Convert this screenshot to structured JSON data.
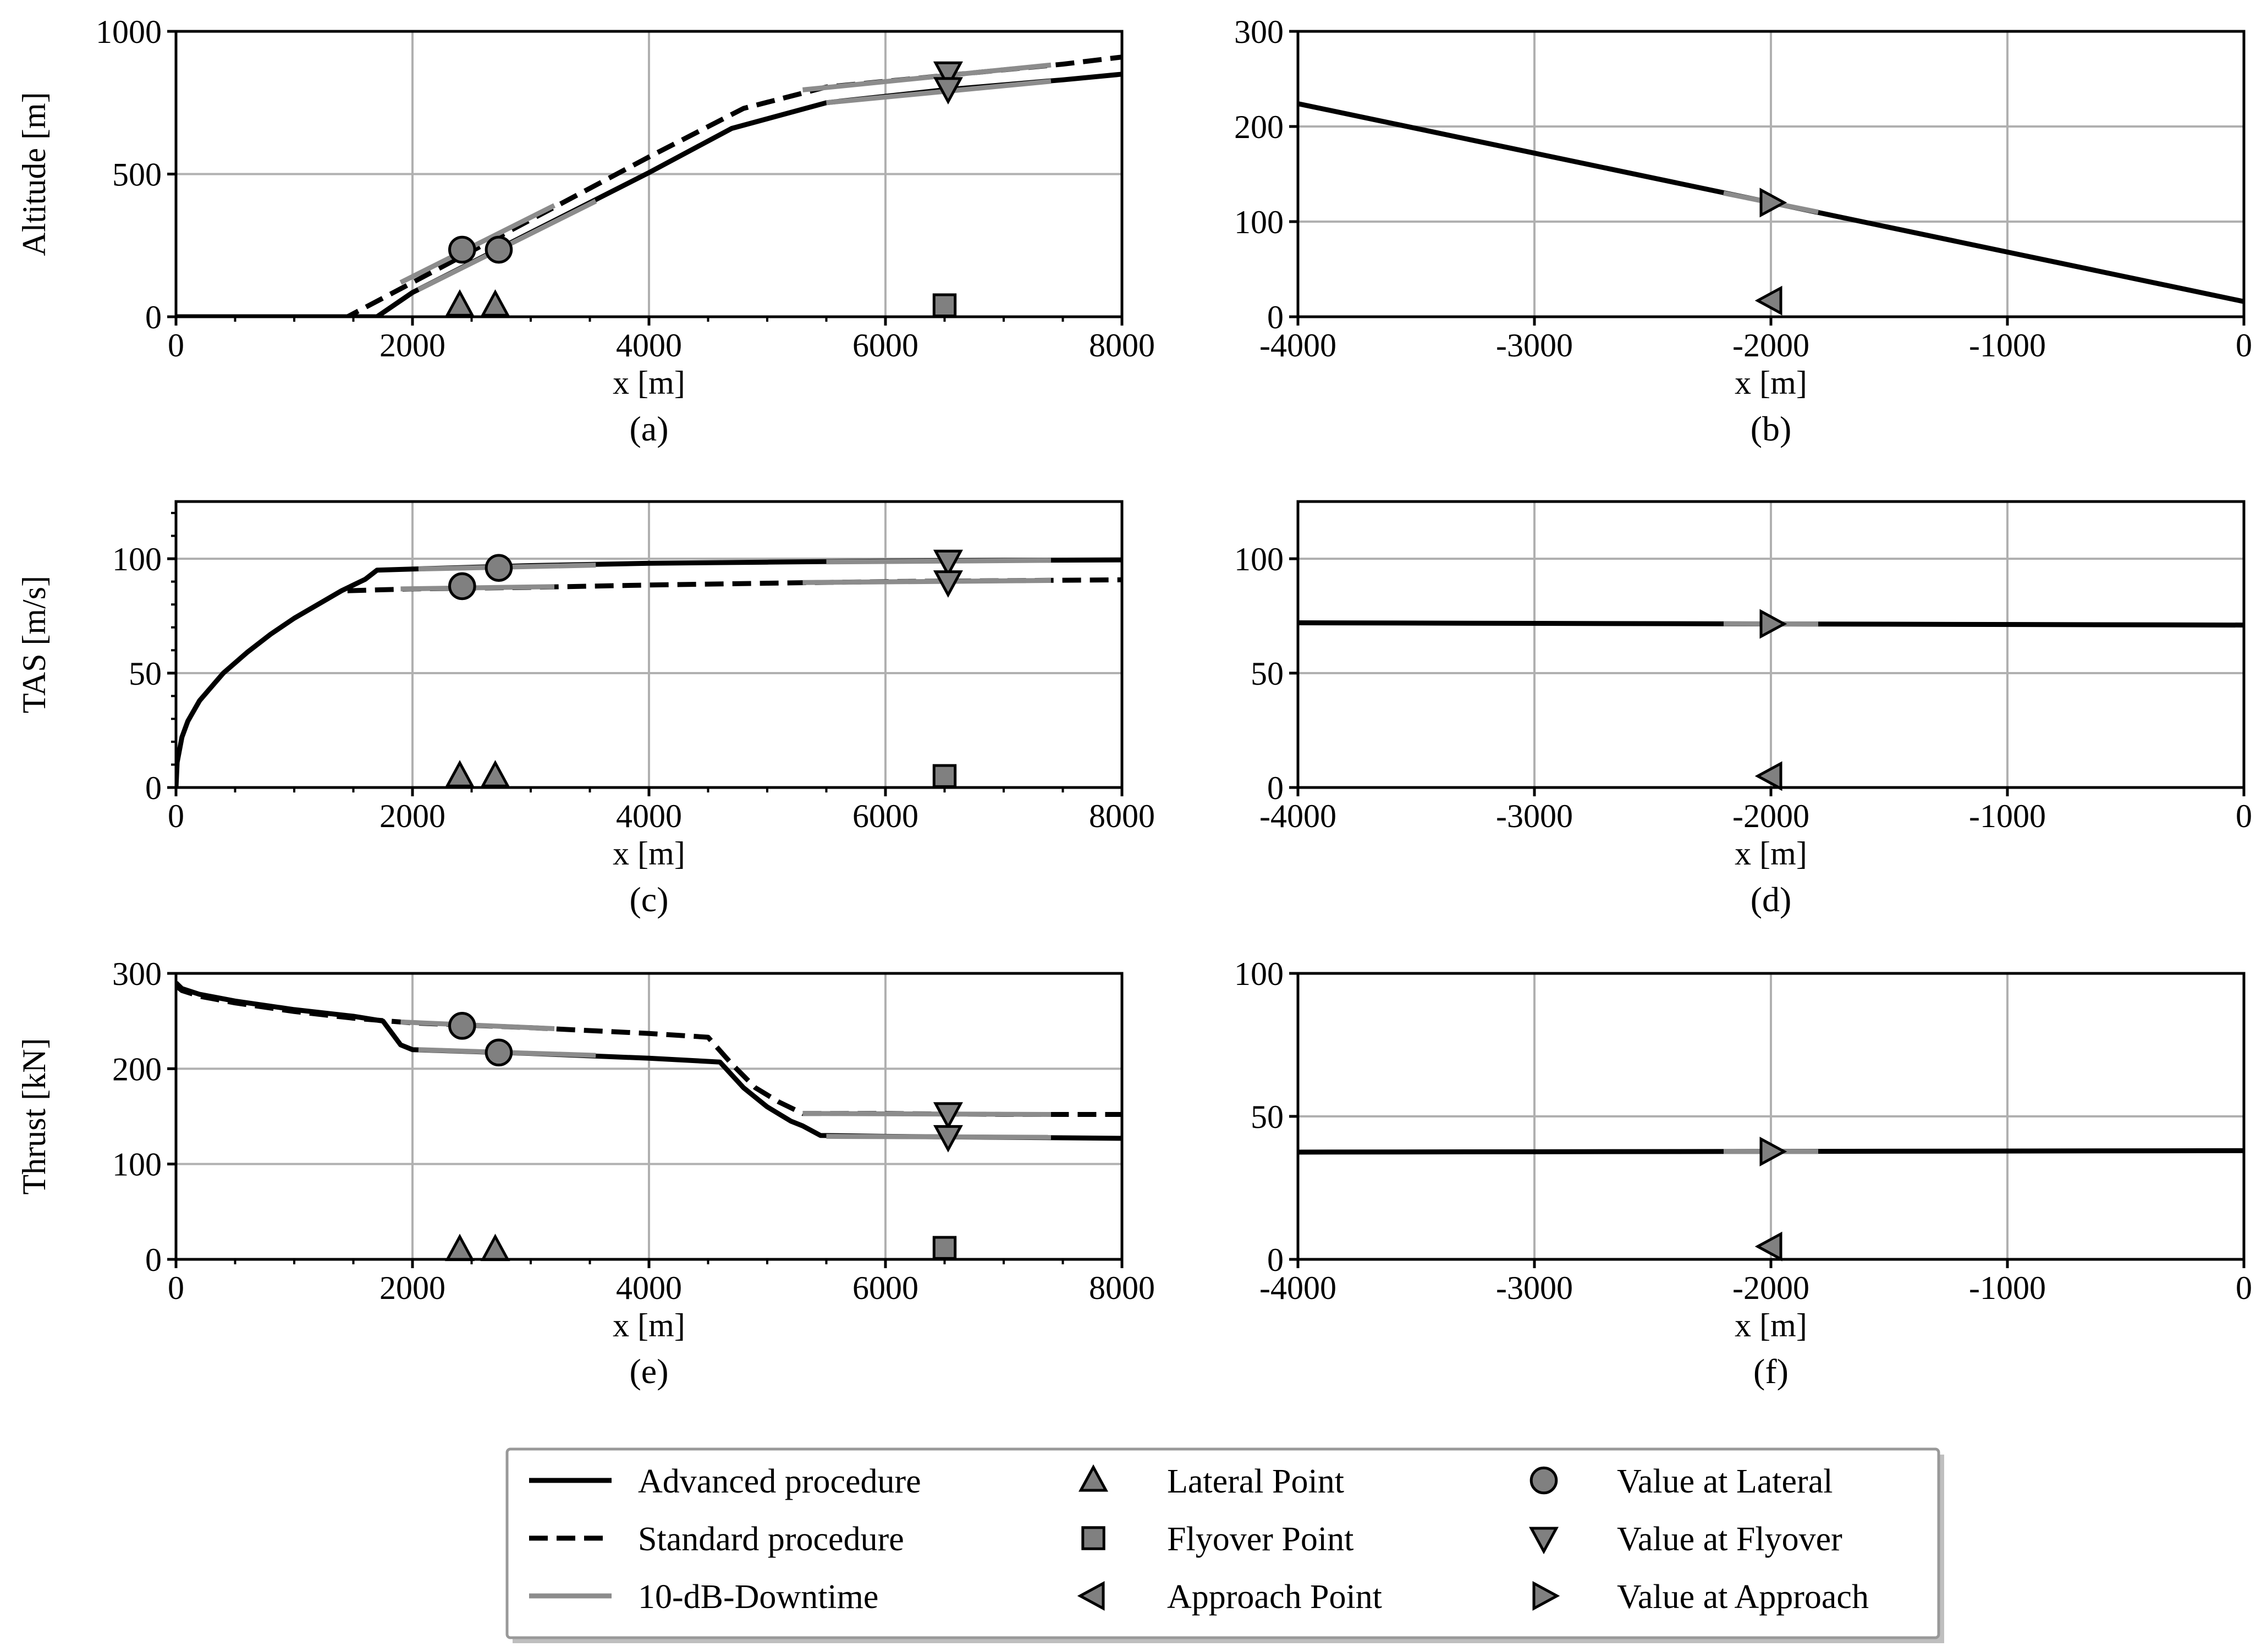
{
  "chart_data": [
    {
      "panel": "a",
      "type": "line",
      "caption": "(a)",
      "xlabel": "x [m]",
      "ylabel": "Altitude [m]",
      "xlim": [
        0,
        8000
      ],
      "ylim": [
        0,
        1000
      ],
      "xticks": [
        0,
        2000,
        4000,
        6000,
        8000
      ],
      "yticks": [
        0,
        500,
        1000
      ],
      "xtick_labels": [
        "0",
        "2000",
        "4000",
        "6000",
        "8000"
      ],
      "ytick_labels": [
        "0",
        "500",
        "1000"
      ],
      "minor_xticks": [
        500,
        1000,
        1500,
        2500,
        3000,
        3500,
        4500,
        5000,
        5500,
        6500,
        7000,
        7500
      ],
      "minor_yticks": [],
      "grid": true,
      "series": [
        {
          "name": "Advanced procedure",
          "style": "advanced",
          "x": [
            0,
            1700,
            2000,
            3000,
            4000,
            4700,
            5500,
            6500,
            7500,
            8000
          ],
          "y": [
            0,
            0,
            85,
            295,
            505,
            660,
            750,
            795,
            830,
            850
          ]
        },
        {
          "name": "Standard procedure",
          "style": "standard",
          "x": [
            0,
            1450,
            2000,
            3000,
            4000,
            4800,
            5500,
            6500,
            7500,
            8000
          ],
          "y": [
            0,
            0,
            120,
            340,
            560,
            730,
            805,
            845,
            885,
            910
          ]
        },
        {
          "name": "10-dB-Downtime",
          "style": "downtime",
          "x": [
            2050,
            3550
          ],
          "y": [
            95,
            405
          ]
        },
        {
          "name": "10-dB-Downtime",
          "style": "downtime",
          "x": [
            1900,
            3200
          ],
          "y": [
            120,
            390
          ]
        },
        {
          "name": "10-dB-Downtime",
          "style": "downtime",
          "x": [
            5500,
            7400
          ],
          "y": [
            750,
            825
          ]
        },
        {
          "name": "10-dB-Downtime",
          "style": "downtime",
          "x": [
            5300,
            7400
          ],
          "y": [
            795,
            882
          ]
        }
      ],
      "markers": [
        {
          "name": "Lateral Point",
          "shape": "tri-up",
          "x": [
            2400,
            2700
          ],
          "y": [
            40,
            40
          ]
        },
        {
          "name": "Flyover Point",
          "shape": "square",
          "x": [
            6500
          ],
          "y": [
            40
          ]
        },
        {
          "name": "Value at Lateral",
          "shape": "circle",
          "x": [
            2420,
            2730
          ],
          "y": [
            235,
            235
          ]
        },
        {
          "name": "Value at Flyover",
          "shape": "tri-down",
          "x": [
            6530,
            6530
          ],
          "y": [
            855,
            800
          ]
        }
      ]
    },
    {
      "panel": "b",
      "type": "line",
      "caption": "(b)",
      "xlabel": "x [m]",
      "ylabel": "",
      "xlim": [
        -4000,
        0
      ],
      "ylim": [
        0,
        300
      ],
      "xticks": [
        -4000,
        -3000,
        -2000,
        -1000,
        0
      ],
      "yticks": [
        0,
        100,
        200,
        300
      ],
      "xtick_labels": [
        "-4000",
        "-3000",
        "-2000",
        "-1000",
        "0"
      ],
      "ytick_labels": [
        "0",
        "100",
        "200",
        "300"
      ],
      "minor_xticks": [],
      "minor_yticks": [],
      "grid": true,
      "series": [
        {
          "name": "Advanced procedure",
          "style": "advanced",
          "x": [
            -4000,
            0
          ],
          "y": [
            224,
            16
          ]
        },
        {
          "name": "10-dB-Downtime",
          "style": "downtime",
          "x": [
            -2200,
            -1800
          ],
          "y": [
            130,
            110
          ]
        }
      ],
      "markers": [
        {
          "name": "Approach Point",
          "shape": "tri-left",
          "x": [
            -2000
          ],
          "y": [
            17
          ]
        },
        {
          "name": "Value at Approach",
          "shape": "tri-right",
          "x": [
            -2000
          ],
          "y": [
            120
          ]
        }
      ]
    },
    {
      "panel": "c",
      "type": "line",
      "caption": "(c)",
      "xlabel": "x [m]",
      "ylabel": "TAS [m/s]",
      "xlim": [
        0,
        8000
      ],
      "ylim": [
        0,
        125
      ],
      "xticks": [
        0,
        2000,
        4000,
        6000,
        8000
      ],
      "yticks": [
        0,
        50,
        100
      ],
      "xtick_labels": [
        "0",
        "2000",
        "4000",
        "6000",
        "8000"
      ],
      "ytick_labels": [
        "0",
        "50",
        "100"
      ],
      "minor_xticks": [
        500,
        1000,
        1500,
        2500,
        3000,
        3500,
        4500,
        5000,
        5500,
        6500,
        7000,
        7500
      ],
      "minor_yticks": [
        10,
        20,
        30,
        40,
        60,
        70,
        80,
        90,
        110,
        120
      ],
      "grid": true,
      "series": [
        {
          "name": "Advanced procedure",
          "style": "advanced",
          "x": [
            0,
            10,
            50,
            100,
            200,
            400,
            600,
            800,
            1000,
            1200,
            1400,
            1600,
            1700,
            2000,
            3000,
            4000,
            5000,
            6000,
            7000,
            8000
          ],
          "y": [
            0,
            11,
            22,
            29,
            38,
            50,
            59,
            67,
            74,
            80,
            86,
            91,
            95,
            95.5,
            97,
            98,
            98.5,
            99,
            99.3,
            99.5
          ]
        },
        {
          "name": "Standard procedure",
          "style": "standard",
          "x": [
            1450,
            2000,
            3000,
            4000,
            5000,
            6000,
            7000,
            8000
          ],
          "y": [
            86,
            86.8,
            87.5,
            88.5,
            89.3,
            90,
            90.4,
            90.8
          ]
        },
        {
          "name": "10-dB-Downtime",
          "style": "downtime",
          "x": [
            2050,
            3550
          ],
          "y": [
            95.5,
            97.2
          ]
        },
        {
          "name": "10-dB-Downtime",
          "style": "downtime",
          "x": [
            1900,
            3200
          ],
          "y": [
            86.8,
            87.8
          ]
        },
        {
          "name": "10-dB-Downtime",
          "style": "downtime",
          "x": [
            5500,
            7400
          ],
          "y": [
            98.6,
            99.3
          ]
        },
        {
          "name": "10-dB-Downtime",
          "style": "downtime",
          "x": [
            5300,
            7400
          ],
          "y": [
            89.6,
            90.5
          ]
        }
      ],
      "markers": [
        {
          "name": "Lateral Point",
          "shape": "tri-up",
          "x": [
            2400,
            2700
          ],
          "y": [
            5,
            5
          ]
        },
        {
          "name": "Flyover Point",
          "shape": "square",
          "x": [
            6500
          ],
          "y": [
            5
          ]
        },
        {
          "name": "Value at Lateral",
          "shape": "circle",
          "x": [
            2420,
            2730
          ],
          "y": [
            88,
            96
          ]
        },
        {
          "name": "Value at Flyover",
          "shape": "tri-down",
          "x": [
            6530,
            6530
          ],
          "y": [
            99,
            90
          ]
        }
      ]
    },
    {
      "panel": "d",
      "type": "line",
      "caption": "(d)",
      "xlabel": "x [m]",
      "ylabel": "",
      "xlim": [
        -4000,
        0
      ],
      "ylim": [
        0,
        125
      ],
      "xticks": [
        -4000,
        -3000,
        -2000,
        -1000,
        0
      ],
      "yticks": [
        0,
        50,
        100
      ],
      "xtick_labels": [
        "-4000",
        "-3000",
        "-2000",
        "-1000",
        "0"
      ],
      "ytick_labels": [
        "0",
        "50",
        "100"
      ],
      "minor_xticks": [],
      "minor_yticks": [],
      "grid": true,
      "series": [
        {
          "name": "Advanced procedure",
          "style": "advanced",
          "x": [
            -4000,
            0
          ],
          "y": [
            72,
            71
          ]
        },
        {
          "name": "10-dB-Downtime",
          "style": "downtime",
          "x": [
            -2200,
            -1800
          ],
          "y": [
            71.6,
            71.5
          ]
        }
      ],
      "markers": [
        {
          "name": "Approach Point",
          "shape": "tri-left",
          "x": [
            -2000
          ],
          "y": [
            5
          ]
        },
        {
          "name": "Value at Approach",
          "shape": "tri-right",
          "x": [
            -2000
          ],
          "y": [
            71.5
          ]
        }
      ]
    },
    {
      "panel": "e",
      "type": "line",
      "caption": "(e)",
      "xlabel": "x [m]",
      "ylabel": "Thrust [kN]",
      "xlim": [
        0,
        8000
      ],
      "ylim": [
        0,
        300
      ],
      "xticks": [
        0,
        2000,
        4000,
        6000,
        8000
      ],
      "yticks": [
        0,
        100,
        200,
        300
      ],
      "xtick_labels": [
        "0",
        "2000",
        "4000",
        "6000",
        "8000"
      ],
      "ytick_labels": [
        "0",
        "100",
        "200",
        "300"
      ],
      "minor_xticks": [
        500,
        1000,
        1500,
        2500,
        3000,
        3500,
        4500,
        5000,
        5500,
        6500,
        7000,
        7500
      ],
      "minor_yticks": [],
      "grid": true,
      "series": [
        {
          "name": "Advanced procedure",
          "style": "advanced",
          "x": [
            0,
            50,
            200,
            500,
            1000,
            1500,
            1750,
            1900,
            2000,
            3000,
            4000,
            4600,
            4800,
            5000,
            5200,
            5300,
            5450,
            6000,
            7000,
            8000
          ],
          "y": [
            290,
            284,
            278,
            271,
            262,
            255,
            250,
            225,
            220,
            216,
            211,
            207,
            180,
            160,
            145,
            140,
            130,
            129,
            128,
            127
          ]
        },
        {
          "name": "Standard procedure",
          "style": "standard",
          "x": [
            0,
            50,
            200,
            500,
            1000,
            1500,
            1800,
            2000,
            3000,
            4000,
            4500,
            4700,
            4900,
            5100,
            5300,
            6000,
            7000,
            8000
          ],
          "y": [
            287,
            282,
            276,
            269,
            260,
            253,
            250,
            248,
            243,
            237,
            233,
            205,
            180,
            165,
            153,
            153,
            152,
            152
          ]
        },
        {
          "name": "10-dB-Downtime",
          "style": "downtime",
          "x": [
            2050,
            3550
          ],
          "y": [
            220,
            214
          ]
        },
        {
          "name": "10-dB-Downtime",
          "style": "downtime",
          "x": [
            1900,
            3200
          ],
          "y": [
            249,
            242
          ]
        },
        {
          "name": "10-dB-Downtime",
          "style": "downtime",
          "x": [
            5500,
            7400
          ],
          "y": [
            129,
            128
          ]
        },
        {
          "name": "10-dB-Downtime",
          "style": "downtime",
          "x": [
            5300,
            7400
          ],
          "y": [
            153,
            152
          ]
        }
      ],
      "markers": [
        {
          "name": "Lateral Point",
          "shape": "tri-up",
          "x": [
            2400,
            2700
          ],
          "y": [
            10,
            10
          ]
        },
        {
          "name": "Flyover Point",
          "shape": "square",
          "x": [
            6500
          ],
          "y": [
            12
          ]
        },
        {
          "name": "Value at Lateral",
          "shape": "circle",
          "x": [
            2420,
            2730
          ],
          "y": [
            245,
            217
          ]
        },
        {
          "name": "Value at Flyover",
          "shape": "tri-down",
          "x": [
            6530,
            6530
          ],
          "y": [
            153,
            129
          ]
        }
      ]
    },
    {
      "panel": "f",
      "type": "line",
      "caption": "(f)",
      "xlabel": "x [m]",
      "ylabel": "",
      "xlim": [
        -4000,
        0
      ],
      "ylim": [
        0,
        100
      ],
      "xticks": [
        -4000,
        -3000,
        -2000,
        -1000,
        0
      ],
      "yticks": [
        0,
        50,
        100
      ],
      "xtick_labels": [
        "-4000",
        "-3000",
        "-2000",
        "-1000",
        "0"
      ],
      "ytick_labels": [
        "0",
        "50",
        "100"
      ],
      "minor_xticks": [],
      "minor_yticks": [],
      "grid": true,
      "series": [
        {
          "name": "Advanced procedure",
          "style": "advanced",
          "x": [
            -4000,
            0
          ],
          "y": [
            37.5,
            38
          ]
        },
        {
          "name": "10-dB-Downtime",
          "style": "downtime",
          "x": [
            -2200,
            -1800
          ],
          "y": [
            37.7,
            37.7
          ]
        }
      ],
      "markers": [
        {
          "name": "Approach Point",
          "shape": "tri-left",
          "x": [
            -2000
          ],
          "y": [
            4.5
          ]
        },
        {
          "name": "Value at Approach",
          "shape": "tri-right",
          "x": [
            -2000
          ],
          "y": [
            37.7
          ]
        }
      ]
    }
  ],
  "legend": {
    "placement": "bottom-center",
    "items": [
      {
        "label": "Advanced procedure",
        "kind": "line",
        "style": "advanced"
      },
      {
        "label": "Lateral Point",
        "kind": "marker",
        "shape": "tri-up"
      },
      {
        "label": "Value at Lateral",
        "kind": "marker",
        "shape": "circle"
      },
      {
        "label": "Standard procedure",
        "kind": "line",
        "style": "standard"
      },
      {
        "label": "Flyover Point",
        "kind": "marker",
        "shape": "square"
      },
      {
        "label": "Value at Flyover",
        "kind": "marker",
        "shape": "tri-down"
      },
      {
        "label": "10-dB-Downtime",
        "kind": "line",
        "style": "downtime"
      },
      {
        "label": "Approach Point",
        "kind": "marker",
        "shape": "tri-left"
      },
      {
        "label": "Value at Approach",
        "kind": "marker",
        "shape": "tri-right"
      }
    ]
  },
  "colors": {
    "advanced": "#000000",
    "standard": "#000000",
    "downtime": "#8c8c8c",
    "marker_fill": "#808080",
    "grid": "#b0b0b0",
    "axis": "#000000"
  }
}
